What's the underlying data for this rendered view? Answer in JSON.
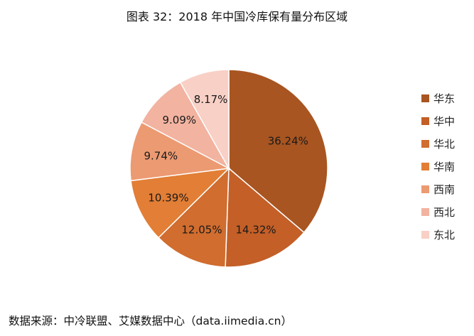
{
  "title": "图表 32：2018 年中国冷库保有量分布区域",
  "source": "数据来源：中冷联盟、艾媒数据中心（data.iimedia.cn）",
  "watermark": "",
  "chart_data": {
    "type": "pie",
    "title": "图表 32：2018 年中国冷库保有量分布区域",
    "unit": "%",
    "legend_position": "right",
    "start_angle_deg": 0,
    "direction": "clockwise",
    "slices": [
      {
        "label": "华东",
        "value": 36.24,
        "display": "36.24%",
        "color": "#a85521"
      },
      {
        "label": "华中",
        "value": 14.32,
        "display": "14.32%",
        "color": "#c35f27"
      },
      {
        "label": "华北",
        "value": 12.05,
        "display": "12.05%",
        "color": "#d06d2f"
      },
      {
        "label": "华南",
        "value": 10.39,
        "display": "10.39%",
        "color": "#e27e35"
      },
      {
        "label": "西南",
        "value": 9.74,
        "display": "9.74%",
        "color": "#ec9a72"
      },
      {
        "label": "西北",
        "value": 9.09,
        "display": "9.09%",
        "color": "#f2b3a0"
      },
      {
        "label": "东北",
        "value": 8.17,
        "display": "8.17%",
        "color": "#f8d0c6"
      }
    ]
  }
}
